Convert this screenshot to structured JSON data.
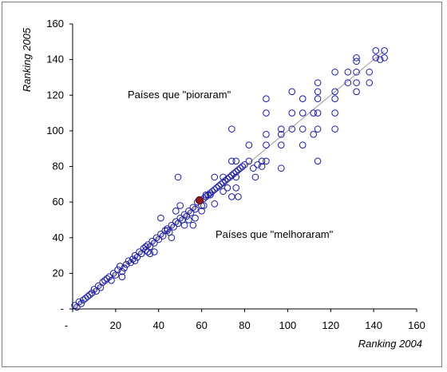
{
  "chart_data": {
    "type": "scatter",
    "xlabel": "Ranking 2004",
    "ylabel": "Ranking 2005",
    "xlim": [
      0,
      160
    ],
    "ylim": [
      0,
      160
    ],
    "x_ticks": [
      "-",
      "20",
      "40",
      "60",
      "80",
      "100",
      "120",
      "140",
      "160"
    ],
    "y_ticks": [
      "-",
      "20",
      "40",
      "60",
      "80",
      "100",
      "120",
      "140",
      "160"
    ],
    "grid": false,
    "legend": "none",
    "annotations": [
      {
        "text": "Países que \"pioraram\"",
        "x": 49,
        "y": 119
      },
      {
        "text": "Países que \"melhoraram\"",
        "x": 67,
        "y": 42
      }
    ],
    "colors": {
      "marker": "#1a1aa0",
      "highlight": "#8b1a1a",
      "line": "#999999"
    },
    "diagonal": [
      [
        1,
        1
      ],
      [
        145,
        145
      ]
    ],
    "highlight_point": {
      "x": 59,
      "y": 61
    },
    "points": [
      [
        1,
        2
      ],
      [
        2,
        1
      ],
      [
        3,
        4
      ],
      [
        4,
        3
      ],
      [
        5,
        5
      ],
      [
        6,
        6
      ],
      [
        7,
        7
      ],
      [
        8,
        8
      ],
      [
        9,
        9
      ],
      [
        10,
        11
      ],
      [
        11,
        10
      ],
      [
        12,
        13
      ],
      [
        13,
        12
      ],
      [
        14,
        15
      ],
      [
        15,
        16
      ],
      [
        16,
        17
      ],
      [
        17,
        18
      ],
      [
        18,
        16
      ],
      [
        19,
        20
      ],
      [
        20,
        19
      ],
      [
        21,
        22
      ],
      [
        22,
        24
      ],
      [
        23,
        21
      ],
      [
        24,
        23
      ],
      [
        25,
        25
      ],
      [
        26,
        27
      ],
      [
        27,
        26
      ],
      [
        28,
        28
      ],
      [
        29,
        30
      ],
      [
        30,
        29
      ],
      [
        31,
        32
      ],
      [
        32,
        31
      ],
      [
        33,
        34
      ],
      [
        34,
        33
      ],
      [
        35,
        36
      ],
      [
        36,
        35
      ],
      [
        37,
        38
      ],
      [
        38,
        37
      ],
      [
        39,
        40
      ],
      [
        40,
        39
      ],
      [
        41,
        42
      ],
      [
        42,
        41
      ],
      [
        43,
        44
      ],
      [
        44,
        45
      ],
      [
        45,
        43
      ],
      [
        46,
        47
      ],
      [
        47,
        46
      ],
      [
        48,
        49
      ],
      [
        49,
        48
      ],
      [
        50,
        51
      ],
      [
        51,
        50
      ],
      [
        52,
        53
      ],
      [
        53,
        52
      ],
      [
        54,
        55
      ],
      [
        55,
        54
      ],
      [
        56,
        57
      ],
      [
        57,
        56
      ],
      [
        58,
        60
      ],
      [
        60,
        58
      ],
      [
        61,
        62
      ],
      [
        62,
        63
      ],
      [
        63,
        64
      ],
      [
        64,
        65
      ],
      [
        65,
        66
      ],
      [
        66,
        67
      ],
      [
        67,
        68
      ],
      [
        68,
        69
      ],
      [
        69,
        70
      ],
      [
        70,
        71
      ],
      [
        71,
        72
      ],
      [
        72,
        73
      ],
      [
        73,
        74
      ],
      [
        74,
        75
      ],
      [
        75,
        76
      ],
      [
        76,
        77
      ],
      [
        77,
        78
      ],
      [
        78,
        79
      ],
      [
        79,
        80
      ],
      [
        80,
        81
      ],
      [
        23,
        18
      ],
      [
        29,
        27
      ],
      [
        34,
        35
      ],
      [
        35,
        32
      ],
      [
        36,
        31
      ],
      [
        38,
        32
      ],
      [
        41,
        51
      ],
      [
        44,
        44
      ],
      [
        46,
        40
      ],
      [
        48,
        55
      ],
      [
        49,
        74
      ],
      [
        50,
        58
      ],
      [
        52,
        47
      ],
      [
        54,
        50
      ],
      [
        56,
        47
      ],
      [
        57,
        51
      ],
      [
        60,
        55
      ],
      [
        61,
        58
      ],
      [
        62,
        64
      ],
      [
        64,
        64
      ],
      [
        66,
        59
      ],
      [
        66,
        74
      ],
      [
        70,
        74
      ],
      [
        70,
        66
      ],
      [
        72,
        68
      ],
      [
        74,
        101
      ],
      [
        74,
        63
      ],
      [
        74,
        83
      ],
      [
        76,
        83
      ],
      [
        76,
        74
      ],
      [
        76,
        68
      ],
      [
        77,
        63
      ],
      [
        82,
        92
      ],
      [
        82,
        83
      ],
      [
        84,
        79
      ],
      [
        85,
        74
      ],
      [
        86,
        81
      ],
      [
        88,
        80
      ],
      [
        88,
        83
      ],
      [
        90,
        118
      ],
      [
        90,
        110
      ],
      [
        90,
        98
      ],
      [
        90,
        92
      ],
      [
        90,
        83
      ],
      [
        97,
        101
      ],
      [
        97,
        98
      ],
      [
        97,
        92
      ],
      [
        97,
        79
      ],
      [
        102,
        122
      ],
      [
        102,
        110
      ],
      [
        102,
        101
      ],
      [
        107,
        118
      ],
      [
        107,
        110
      ],
      [
        107,
        101
      ],
      [
        107,
        92
      ],
      [
        112,
        110
      ],
      [
        112,
        98
      ],
      [
        114,
        127
      ],
      [
        114,
        122
      ],
      [
        114,
        118
      ],
      [
        114,
        110
      ],
      [
        114,
        101
      ],
      [
        114,
        83
      ],
      [
        122,
        133
      ],
      [
        122,
        122
      ],
      [
        122,
        118
      ],
      [
        122,
        110
      ],
      [
        122,
        101
      ],
      [
        128,
        133
      ],
      [
        128,
        127
      ],
      [
        132,
        141
      ],
      [
        132,
        139
      ],
      [
        132,
        133
      ],
      [
        132,
        127
      ],
      [
        132,
        122
      ],
      [
        138,
        133
      ],
      [
        138,
        127
      ],
      [
        141,
        145
      ],
      [
        141,
        141
      ],
      [
        143,
        140
      ],
      [
        145,
        145
      ],
      [
        145,
        141
      ]
    ]
  }
}
